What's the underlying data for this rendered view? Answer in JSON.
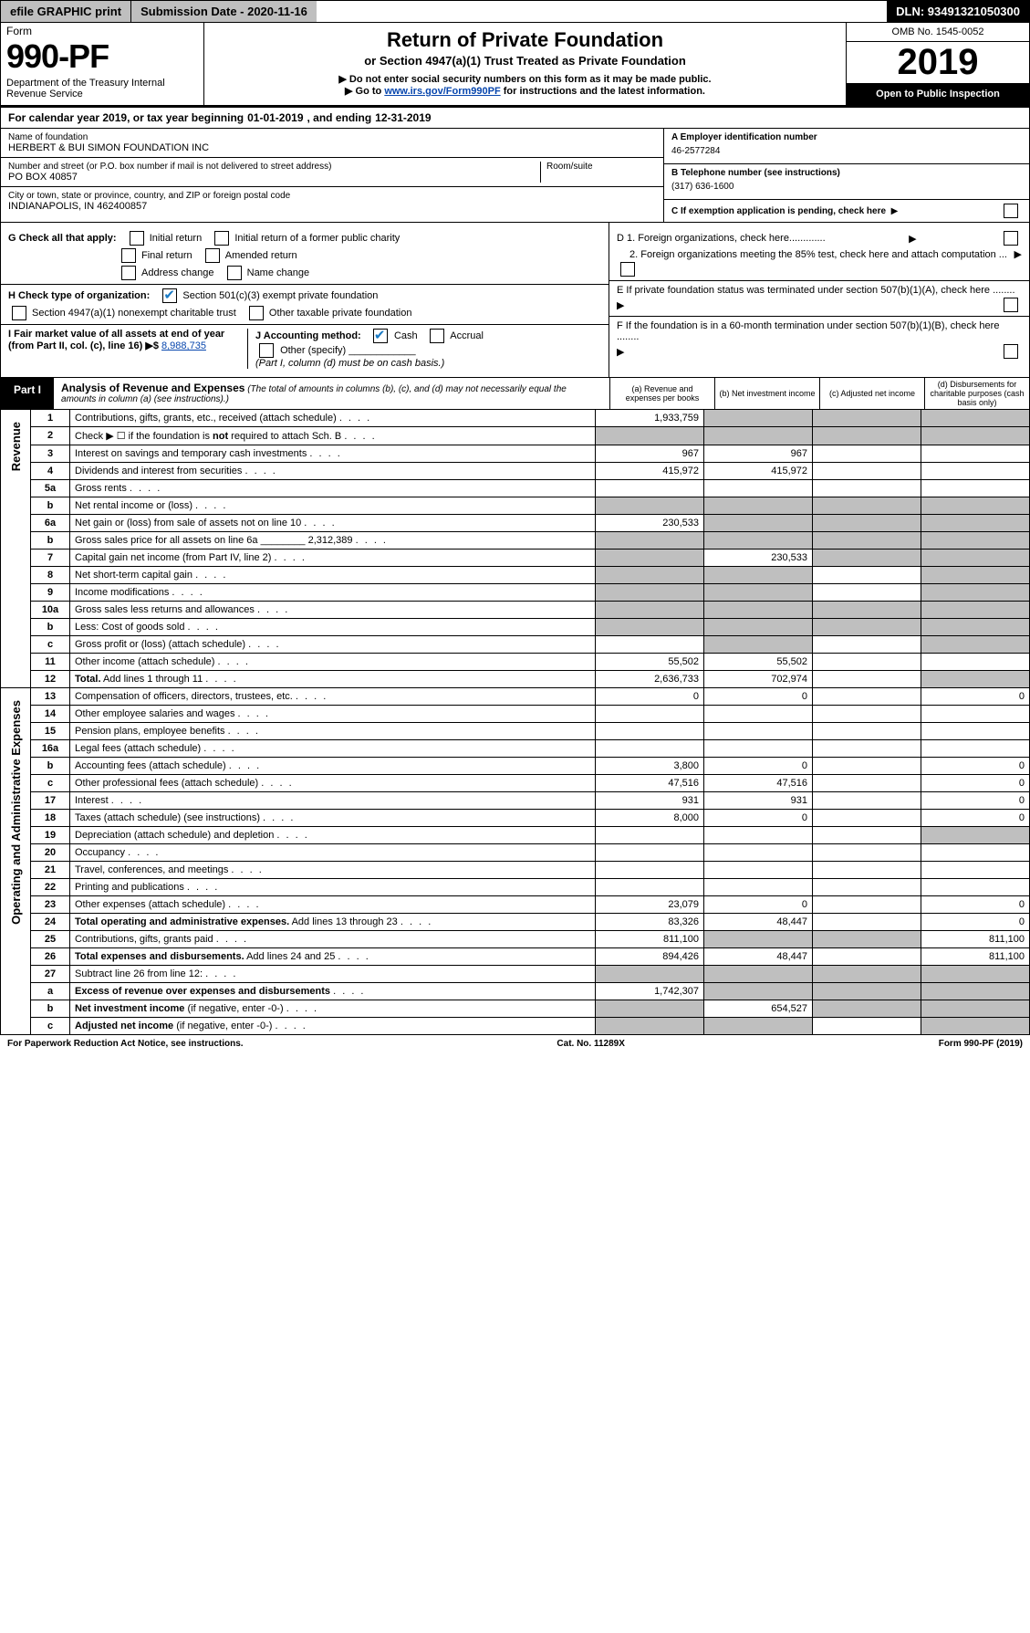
{
  "top": {
    "efile": "efile GRAPHIC print",
    "sub_date": "Submission Date - 2020-11-16",
    "dln": "DLN: 93491321050300"
  },
  "hdr": {
    "form_word": "Form",
    "form_no": "990-PF",
    "dept": "Department of the Treasury\nInternal Revenue Service",
    "title": "Return of Private Foundation",
    "subtitle": "or Section 4947(a)(1) Trust Treated as Private Foundation",
    "instr1": "▶ Do not enter social security numbers on this form as it may be made public.",
    "instr2_pre": "▶ Go to ",
    "instr2_link": "www.irs.gov/Form990PF",
    "instr2_post": " for instructions and the latest information.",
    "omb": "OMB No. 1545-0052",
    "tax_year": "2019",
    "inspect": "Open to Public Inspection"
  },
  "cal": {
    "label": "For calendar year 2019, or tax year beginning ",
    "begin": "01-01-2019",
    "mid": ", and ending ",
    "end": "12-31-2019"
  },
  "id": {
    "name_lbl": "Name of foundation",
    "name": "HERBERT & BUI SIMON FOUNDATION INC",
    "addr_lbl": "Number and street (or P.O. box number if mail is not delivered to street address)",
    "addr": "PO BOX 40857",
    "room_lbl": "Room/suite",
    "city_lbl": "City or town, state or province, country, and ZIP or foreign postal code",
    "city": "INDIANAPOLIS, IN  462400857",
    "ein_lbl": "A Employer identification number",
    "ein": "46-2577284",
    "phone_lbl": "B Telephone number (see instructions)",
    "phone": "(317) 636-1600",
    "c_lbl": "C If exemption application is pending, check here"
  },
  "checks": {
    "g_lbl": "G Check all that apply:",
    "initial": "Initial return",
    "initial_former": "Initial return of a former public charity",
    "final": "Final return",
    "amended": "Amended return",
    "addr_ch": "Address change",
    "name_ch": "Name change",
    "h_lbl": "H Check type of organization:",
    "h_501c3": "Section 501(c)(3) exempt private foundation",
    "h_4947": "Section 4947(a)(1) nonexempt charitable trust",
    "h_other": "Other taxable private foundation",
    "i_lbl": "I Fair market value of all assets at end of year (from Part II, col. (c), line 16) ▶$ ",
    "i_val": "8,988,735",
    "j_lbl": "J Accounting method:",
    "j_cash": "Cash",
    "j_accrual": "Accrual",
    "j_other": "Other (specify)",
    "j_note": "(Part I, column (d) must be on cash basis.)",
    "d1": "D 1. Foreign organizations, check here.............",
    "d2": "2. Foreign organizations meeting the 85% test, check here and attach computation ...",
    "e": "E  If private foundation status was terminated under section 507(b)(1)(A), check here ........",
    "f": "F  If the foundation is in a 60-month termination under section 507(b)(1)(B), check here ........"
  },
  "part1": {
    "part": "Part I",
    "title": "Analysis of Revenue and Expenses",
    "note": " (The total of amounts in columns (b), (c), and (d) may not necessarily equal the amounts in column (a) (see instructions).)",
    "col_a": "(a)  Revenue and expenses per books",
    "col_b": "(b)  Net investment income",
    "col_c": "(c)  Adjusted net income",
    "col_d": "(d)  Disbursements for charitable purposes (cash basis only)"
  },
  "labels": {
    "revenue": "Revenue",
    "expenses": "Operating and Administrative Expenses"
  },
  "rows": [
    {
      "n": "1",
      "d": "Contributions, gifts, grants, etc., received (attach schedule)",
      "a": "1,933,759",
      "shade": [
        "b",
        "c",
        "d"
      ]
    },
    {
      "n": "2",
      "d": "Check ▶ ☐ if the foundation is <b>not</b> required to attach Sch. B",
      "shade": [
        "a",
        "b",
        "c",
        "d"
      ]
    },
    {
      "n": "3",
      "d": "Interest on savings and temporary cash investments",
      "a": "967",
      "b": "967"
    },
    {
      "n": "4",
      "d": "Dividends and interest from securities",
      "a": "415,972",
      "b": "415,972"
    },
    {
      "n": "5a",
      "d": "Gross rents"
    },
    {
      "n": "b",
      "d": "Net rental income or (loss)",
      "shade": [
        "a",
        "b",
        "c",
        "d"
      ]
    },
    {
      "n": "6a",
      "d": "Net gain or (loss) from sale of assets not on line 10",
      "a": "230,533",
      "shade": [
        "b",
        "c",
        "d"
      ]
    },
    {
      "n": "b",
      "d": "Gross sales price for all assets on line 6a ________ 2,312,389",
      "shade": [
        "a",
        "b",
        "c",
        "d"
      ]
    },
    {
      "n": "7",
      "d": "Capital gain net income (from Part IV, line 2)",
      "shade": [
        "a"
      ],
      "b": "230,533",
      "shade2": [
        "c",
        "d"
      ]
    },
    {
      "n": "8",
      "d": "Net short-term capital gain",
      "shade": [
        "a",
        "b",
        "d"
      ]
    },
    {
      "n": "9",
      "d": "Income modifications",
      "shade": [
        "a",
        "b",
        "d"
      ]
    },
    {
      "n": "10a",
      "d": "Gross sales less returns and allowances",
      "shade": [
        "a",
        "b",
        "c",
        "d"
      ]
    },
    {
      "n": "b",
      "d": "Less: Cost of goods sold",
      "shade": [
        "a",
        "b",
        "c",
        "d"
      ]
    },
    {
      "n": "c",
      "d": "Gross profit or (loss) (attach schedule)",
      "shade": [
        "b",
        "d"
      ]
    },
    {
      "n": "11",
      "d": "Other income (attach schedule)",
      "a": "55,502",
      "b": "55,502"
    },
    {
      "n": "12",
      "d": "<b>Total.</b> Add lines 1 through 11",
      "a": "2,636,733",
      "b": "702,974",
      "shade": [
        "d"
      ]
    }
  ],
  "exprows": [
    {
      "n": "13",
      "d": "Compensation of officers, directors, trustees, etc.",
      "a": "0",
      "b": "0",
      "dd": "0"
    },
    {
      "n": "14",
      "d": "Other employee salaries and wages"
    },
    {
      "n": "15",
      "d": "Pension plans, employee benefits"
    },
    {
      "n": "16a",
      "d": "Legal fees (attach schedule)"
    },
    {
      "n": "b",
      "d": "Accounting fees (attach schedule)",
      "a": "3,800",
      "b": "0",
      "dd": "0"
    },
    {
      "n": "c",
      "d": "Other professional fees (attach schedule)",
      "a": "47,516",
      "b": "47,516",
      "dd": "0"
    },
    {
      "n": "17",
      "d": "Interest",
      "a": "931",
      "b": "931",
      "dd": "0"
    },
    {
      "n": "18",
      "d": "Taxes (attach schedule) (see instructions)",
      "a": "8,000",
      "b": "0",
      "dd": "0"
    },
    {
      "n": "19",
      "d": "Depreciation (attach schedule) and depletion",
      "shade": [
        "d"
      ]
    },
    {
      "n": "20",
      "d": "Occupancy"
    },
    {
      "n": "21",
      "d": "Travel, conferences, and meetings"
    },
    {
      "n": "22",
      "d": "Printing and publications"
    },
    {
      "n": "23",
      "d": "Other expenses (attach schedule)",
      "a": "23,079",
      "b": "0",
      "dd": "0"
    },
    {
      "n": "24",
      "d": "<b>Total operating and administrative expenses.</b> Add lines 13 through 23",
      "a": "83,326",
      "b": "48,447",
      "dd": "0"
    },
    {
      "n": "25",
      "d": "Contributions, gifts, grants paid",
      "a": "811,100",
      "shade": [
        "b",
        "c"
      ],
      "dd": "811,100"
    },
    {
      "n": "26",
      "d": "<b>Total expenses and disbursements.</b> Add lines 24 and 25",
      "a": "894,426",
      "b": "48,447",
      "dd": "811,100"
    },
    {
      "n": "27",
      "d": "Subtract line 26 from line 12:",
      "shade": [
        "a",
        "b",
        "c",
        "d"
      ]
    },
    {
      "n": "a",
      "d": "<b>Excess of revenue over expenses and disbursements</b>",
      "a": "1,742,307",
      "shade": [
        "b",
        "c",
        "d"
      ]
    },
    {
      "n": "b",
      "d": "<b>Net investment income</b> (if negative, enter -0-)",
      "shade": [
        "a"
      ],
      "b": "654,527",
      "shade2": [
        "c",
        "d"
      ]
    },
    {
      "n": "c",
      "d": "<b>Adjusted net income</b> (if negative, enter -0-)",
      "shade": [
        "a",
        "b",
        "d"
      ]
    }
  ],
  "foot": {
    "left": "For Paperwork Reduction Act Notice, see instructions.",
    "mid": "Cat. No. 11289X",
    "right": "Form 990-PF (2019)"
  }
}
